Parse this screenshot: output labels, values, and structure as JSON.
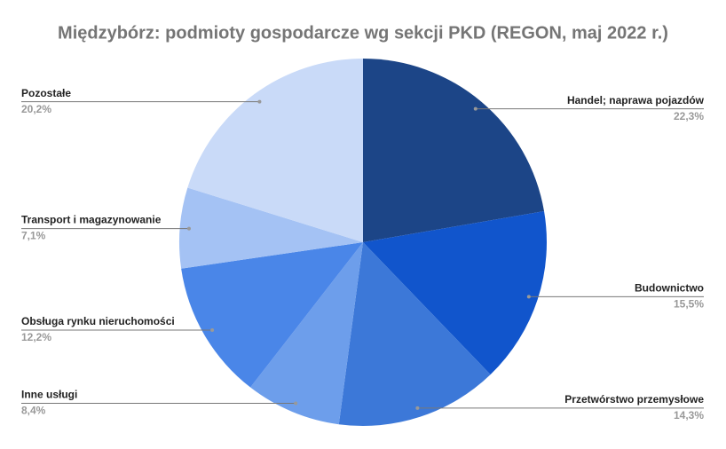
{
  "chart_data": {
    "type": "pie",
    "title": "Międzybórz: podmioty gospodarcze wg sekcji PKD (REGON, maj 2022 r.)",
    "categories": [
      "Handel; naprawa pojazdów",
      "Budownictwo",
      "Przetwórstwo przemysłowe",
      "Inne usługi",
      "Obsługa rynku nieruchomości",
      "Transport i magazynowanie",
      "Pozostałe"
    ],
    "values": [
      22.3,
      15.5,
      14.3,
      8.4,
      12.2,
      7.1,
      20.2
    ],
    "value_labels": [
      "22,3%",
      "15,5%",
      "14,3%",
      "8,4%",
      "12,2%",
      "7,1%",
      "20,2%"
    ],
    "colors": [
      "#1c4587",
      "#1155cc",
      "#3c78d8",
      "#6d9eeb",
      "#4a86e8",
      "#a4c2f4",
      "#c9daf8"
    ]
  }
}
